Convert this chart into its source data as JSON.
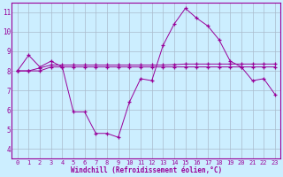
{
  "line1_x": [
    0,
    1,
    2,
    3,
    4,
    5,
    6,
    7,
    8,
    9,
    10,
    11,
    12,
    13,
    14,
    15,
    16,
    17,
    18,
    19,
    20,
    21,
    22,
    23
  ],
  "line1_y": [
    8.0,
    8.8,
    8.2,
    8.5,
    8.2,
    5.9,
    5.9,
    4.8,
    4.8,
    4.6,
    6.4,
    7.6,
    7.5,
    9.3,
    10.4,
    11.2,
    10.7,
    10.3,
    9.6,
    8.5,
    8.2,
    7.5,
    7.6,
    6.8
  ],
  "line2_x": [
    0,
    1,
    2,
    3,
    4,
    5,
    6,
    7,
    8,
    9,
    10,
    11,
    12,
    13,
    14,
    15,
    16,
    17,
    18,
    19,
    20,
    21,
    22,
    23
  ],
  "line2_y": [
    8.0,
    8.0,
    8.15,
    8.3,
    8.3,
    8.3,
    8.3,
    8.3,
    8.3,
    8.3,
    8.3,
    8.3,
    8.3,
    8.3,
    8.32,
    8.35,
    8.35,
    8.35,
    8.35,
    8.35,
    8.35,
    8.35,
    8.35,
    8.35
  ],
  "line3_x": [
    0,
    1,
    2,
    3,
    4,
    5,
    6,
    7,
    8,
    9,
    10,
    11,
    12,
    13,
    14,
    15,
    16,
    17,
    18,
    19,
    20,
    21,
    22,
    23
  ],
  "line3_y": [
    8.0,
    8.0,
    8.0,
    8.2,
    8.2,
    8.2,
    8.2,
    8.2,
    8.2,
    8.2,
    8.2,
    8.2,
    8.2,
    8.2,
    8.2,
    8.2,
    8.2,
    8.2,
    8.2,
    8.2,
    8.2,
    8.2,
    8.2,
    8.2
  ],
  "line_color": "#990099",
  "bg_color": "#cceeff",
  "grid_color": "#aabbcc",
  "xlabel": "Windchill (Refroidissement éolien,°C)",
  "ylim": [
    3.5,
    11.5
  ],
  "xlim": [
    -0.5,
    23.5
  ],
  "yticks": [
    4,
    5,
    6,
    7,
    8,
    9,
    10,
    11
  ],
  "xticks": [
    0,
    1,
    2,
    3,
    4,
    5,
    6,
    7,
    8,
    9,
    10,
    11,
    12,
    13,
    14,
    15,
    16,
    17,
    18,
    19,
    20,
    21,
    22,
    23
  ],
  "tick_fontsize": 5.0,
  "xlabel_fontsize": 5.5
}
